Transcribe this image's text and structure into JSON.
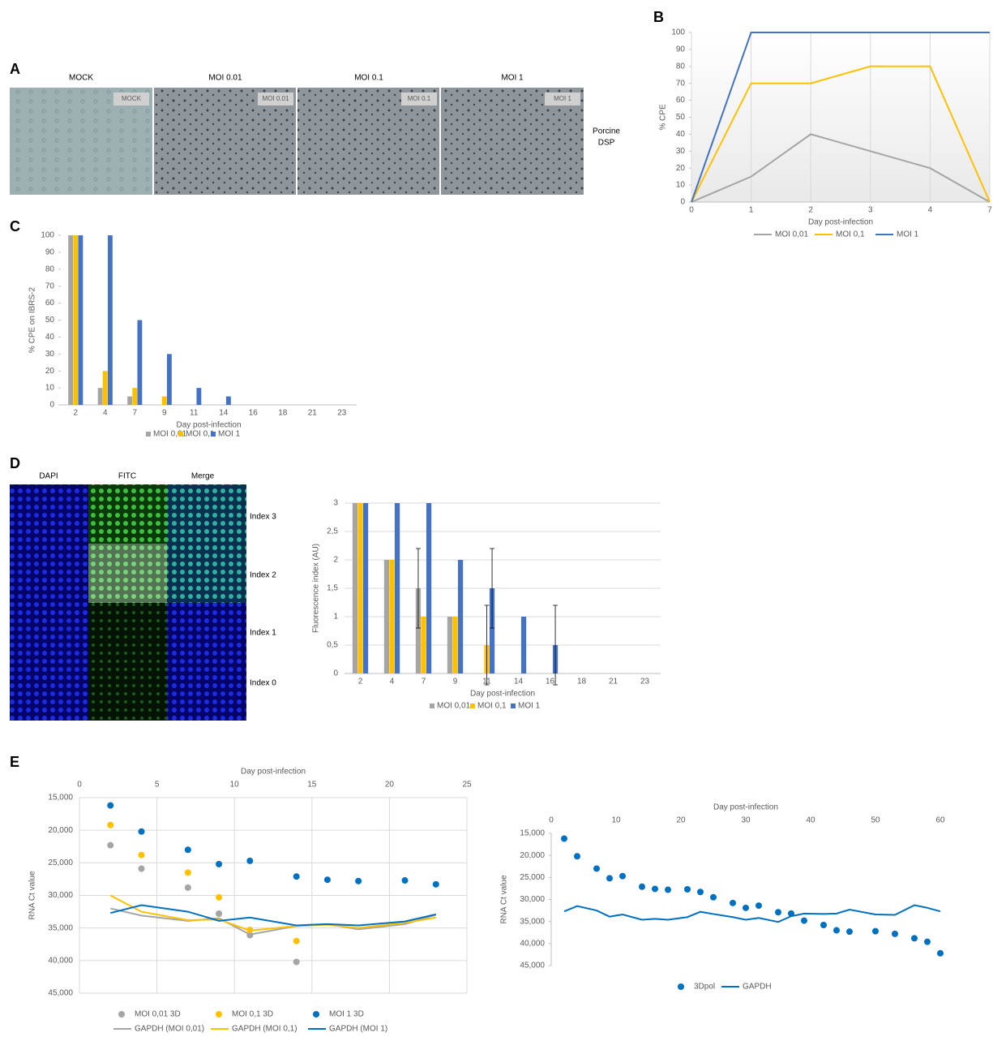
{
  "figure": {
    "letters": [
      "A",
      "B",
      "C",
      "D",
      "E"
    ],
    "panel_a": {
      "columns": [
        "MOCK",
        "MOI 0.01",
        "MOI 0.1",
        "MOI 1"
      ],
      "insets": [
        "MOCK",
        "MOI 0.01",
        "MOI 0.1",
        "MOI 1"
      ],
      "side_label": [
        "Porcine",
        "DSP"
      ]
    },
    "panel_d": {
      "columns": [
        "DAPI",
        "FITC",
        "Merge"
      ],
      "rows": [
        "Index 3",
        "Index 2",
        "Index 1",
        "Index 0"
      ]
    }
  },
  "chart_data": [
    {
      "type": "line",
      "x_label": "Day post-infection",
      "y_label": "% CPE",
      "categories": [
        "0",
        "1",
        "2",
        "3",
        "4",
        "7"
      ],
      "ylim": [
        0,
        100
      ],
      "yticks": [
        0,
        10,
        20,
        30,
        40,
        50,
        60,
        70,
        80,
        90,
        100
      ],
      "grid": "x",
      "series": [
        {
          "name": "MOI 0,01",
          "color": "#a5a5a5",
          "values": [
            0,
            15,
            40,
            30,
            20,
            0
          ]
        },
        {
          "name": "MOI 0,1",
          "color": "#ffc000",
          "values": [
            0,
            70,
            70,
            80,
            80,
            0
          ]
        },
        {
          "name": "MOI 1",
          "color": "#4472c4",
          "values": [
            0,
            100,
            100,
            100,
            100,
            100
          ]
        }
      ]
    },
    {
      "type": "bar",
      "x_label": "Day post-infection",
      "y_label": "% CPE on IBRS-2",
      "categories": [
        "2",
        "4",
        "7",
        "9",
        "11",
        "14",
        "16",
        "18",
        "21",
        "23"
      ],
      "ylim": [
        0,
        100
      ],
      "yticks": [
        0,
        10,
        20,
        30,
        40,
        50,
        60,
        70,
        80,
        90,
        100
      ],
      "grid": "none",
      "series": [
        {
          "name": "MOI 0,01",
          "color": "#a5a5a5",
          "values": [
            100,
            10,
            5,
            0,
            0,
            0,
            0,
            0,
            0,
            0
          ]
        },
        {
          "name": "MOI 0,1",
          "color": "#ffc000",
          "values": [
            100,
            20,
            10,
            5,
            0,
            0,
            0,
            0,
            0,
            0
          ]
        },
        {
          "name": "MOI 1",
          "color": "#4472c4",
          "values": [
            100,
            100,
            50,
            30,
            10,
            5,
            0,
            0,
            0,
            0
          ]
        }
      ]
    },
    {
      "type": "bar",
      "x_label": "Day post-infection",
      "y_label": "Fluorescence index (AU)",
      "categories": [
        "2",
        "4",
        "7",
        "9",
        "11",
        "14",
        "16",
        "18",
        "21",
        "23"
      ],
      "ylim": [
        0,
        3
      ],
      "yticks": [
        0,
        {
          "value": 0.5,
          "label": "0,5"
        },
        1,
        {
          "value": 1.5,
          "label": "1,5"
        },
        2,
        {
          "value": 2.5,
          "label": "2,5"
        },
        3
      ],
      "grid": "y",
      "series": [
        {
          "name": "MOI 0,01",
          "color": "#a5a5a5",
          "values": [
            3,
            2,
            1.5,
            1,
            0,
            0,
            0,
            0,
            0,
            0
          ],
          "errors": [
            null,
            null,
            0.7,
            null,
            null,
            null,
            null,
            null,
            null,
            null
          ]
        },
        {
          "name": "MOI 0,1",
          "color": "#ffc000",
          "values": [
            3,
            2,
            1,
            1,
            0.5,
            0,
            0,
            0,
            0,
            0
          ],
          "errors": [
            null,
            null,
            null,
            null,
            0.7,
            null,
            null,
            null,
            null,
            null
          ]
        },
        {
          "name": "MOI 1",
          "color": "#4472c4",
          "values": [
            3,
            3,
            3,
            2,
            1.5,
            1,
            0.5,
            0,
            0,
            0
          ],
          "errors": [
            null,
            null,
            null,
            null,
            0.7,
            null,
            0.7,
            null,
            null,
            null
          ]
        }
      ]
    },
    {
      "type": "combo",
      "x_label": "Day post-infection",
      "y_label": "RNA Ct value",
      "xlim": [
        0,
        25
      ],
      "xticks": [
        0,
        5,
        10,
        15,
        20,
        25
      ],
      "ylim": [
        45000,
        15000
      ],
      "yticks": [
        {
          "value": 15000,
          "label": "15,000"
        },
        {
          "value": 20000,
          "label": "20,000"
        },
        {
          "value": 25000,
          "label": "25,000"
        },
        {
          "value": 30000,
          "label": "30,000"
        },
        {
          "value": 35000,
          "label": "35,000"
        },
        {
          "value": 40000,
          "label": "40,000"
        },
        {
          "value": 45000,
          "label": "45,000"
        }
      ],
      "grid": "xy",
      "series": [
        {
          "name": "MOI 0,01 3D",
          "kind": "marker",
          "color": "#a5a5a5",
          "x": [
            2,
            4,
            7,
            9,
            11,
            14
          ],
          "values": [
            22300,
            25900,
            28800,
            32800,
            36100,
            40200
          ]
        },
        {
          "name": "MOI 0,1 3D",
          "kind": "marker",
          "color": "#ffc000",
          "x": [
            2,
            4,
            7,
            9,
            11,
            14
          ],
          "values": [
            19200,
            23800,
            26500,
            30300,
            35300,
            37000
          ]
        },
        {
          "name": "MOI 1 3D",
          "kind": "marker",
          "color": "#0070c0",
          "x": [
            2,
            4,
            7,
            9,
            11,
            14,
            16,
            18,
            21,
            23
          ],
          "values": [
            16200,
            20200,
            23000,
            25200,
            24700,
            27100,
            27600,
            27800,
            27700,
            28300
          ]
        },
        {
          "name": "GAPDH (MOI 0,01)",
          "kind": "line",
          "color": "#a5a5a5",
          "x": [
            2,
            4,
            7,
            9,
            11,
            14,
            16,
            18,
            21,
            23
          ],
          "values": [
            32000,
            33100,
            33900,
            33500,
            36000,
            34700,
            34400,
            35200,
            34400,
            33000
          ]
        },
        {
          "name": "GAPDH (MOI 0,1)",
          "kind": "line",
          "color": "#ffc000",
          "x": [
            2,
            4,
            7,
            9,
            11,
            14,
            16,
            18,
            21,
            23
          ],
          "values": [
            30000,
            32500,
            33800,
            33700,
            35400,
            34700,
            34500,
            35000,
            34200,
            33400
          ]
        },
        {
          "name": "GAPDH (MOI 1)",
          "kind": "line",
          "color": "#0070c0",
          "x": [
            2,
            4,
            7,
            9,
            11,
            14,
            16,
            18,
            21,
            23
          ],
          "values": [
            32700,
            31500,
            32500,
            33900,
            33400,
            34600,
            34400,
            34600,
            34000,
            32900
          ]
        }
      ]
    },
    {
      "type": "combo",
      "x_label": "Day post-infection",
      "y_label": "RNA Ct value",
      "xlim": [
        0,
        60
      ],
      "xticks": [
        0,
        10,
        20,
        30,
        40,
        50,
        60
      ],
      "ylim": [
        45000,
        15000
      ],
      "yticks": [
        {
          "value": 15000,
          "label": "15,000"
        },
        {
          "value": 20000,
          "label": "20,000"
        },
        {
          "value": 25000,
          "label": "25,000"
        },
        {
          "value": 30000,
          "label": "30,000"
        },
        {
          "value": 35000,
          "label": "35,000"
        },
        {
          "value": 40000,
          "label": "40,000"
        },
        {
          "value": 45000,
          "label": "45,000"
        }
      ],
      "grid": "none",
      "series": [
        {
          "name": "3Dpol",
          "kind": "marker",
          "color": "#0070c0",
          "x": [
            2,
            4,
            7,
            9,
            11,
            14,
            16,
            18,
            21,
            23,
            25,
            28,
            30,
            32,
            35,
            37,
            39,
            42,
            44,
            46,
            50,
            53,
            56,
            58,
            60
          ],
          "values": [
            16200,
            20200,
            23000,
            25200,
            24700,
            27100,
            27600,
            27800,
            27700,
            28300,
            29500,
            30800,
            31900,
            31400,
            32900,
            33200,
            34800,
            35800,
            37000,
            37300,
            37200,
            37800,
            38800,
            39600,
            42200
          ]
        },
        {
          "name": "GAPDH",
          "kind": "line",
          "color": "#0070c0",
          "x": [
            2,
            4,
            7,
            9,
            11,
            14,
            16,
            18,
            21,
            23,
            25,
            28,
            30,
            32,
            35,
            37,
            39,
            42,
            44,
            46,
            50,
            53,
            56,
            58,
            60
          ],
          "values": [
            32700,
            31500,
            32500,
            33900,
            33400,
            34600,
            34400,
            34600,
            34000,
            32800,
            33300,
            34000,
            34600,
            34200,
            35100,
            33800,
            33200,
            33300,
            33200,
            32300,
            33400,
            33500,
            31300,
            31900,
            32700
          ]
        }
      ]
    }
  ]
}
